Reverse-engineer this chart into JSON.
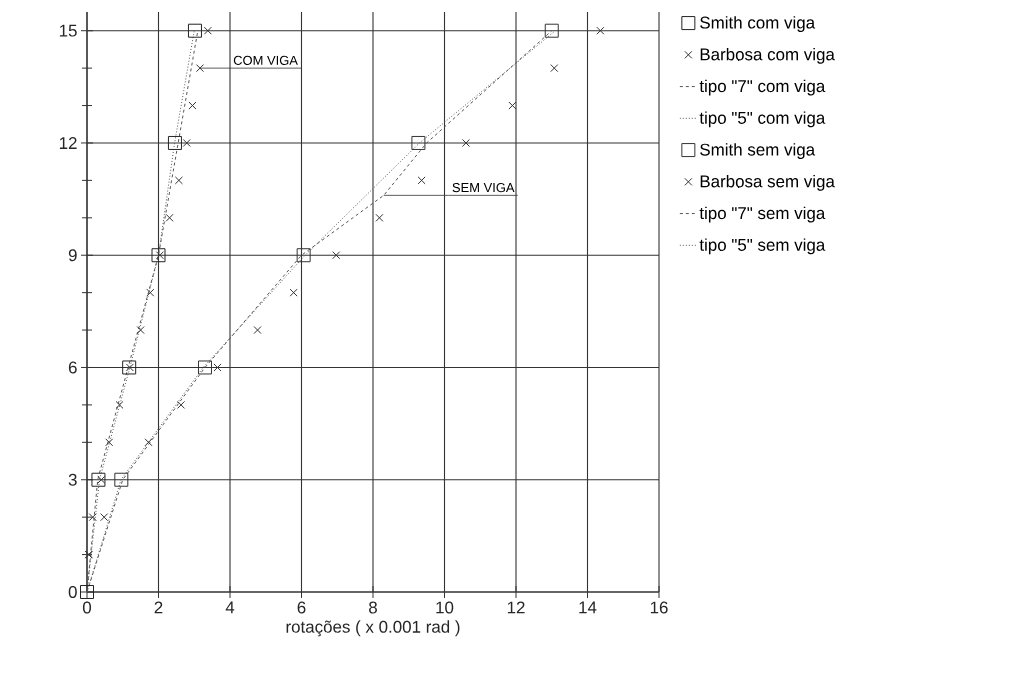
{
  "chart_data": {
    "type": "scatter",
    "xlabel": "rotações ( x 0.001 rad )",
    "xlim": [
      0,
      16
    ],
    "ylim": [
      0,
      15.5
    ],
    "xticks": [
      0,
      2,
      4,
      6,
      8,
      10,
      12,
      14,
      16
    ],
    "yticks": [
      0,
      3,
      6,
      9,
      12,
      15
    ],
    "grid": true,
    "legend": "right",
    "series": [
      {
        "name": "Smith    com viga",
        "marker": "square",
        "color": "#222222",
        "x": [
          0,
          0.32,
          1.18,
          2.0,
          2.46,
          3.02
        ],
        "values": [
          0,
          3,
          6,
          9,
          12,
          15
        ]
      },
      {
        "name": "Barbosa  com viga",
        "marker": "cross",
        "color": "#333333",
        "x": [
          0.05,
          0.16,
          0.4,
          0.62,
          0.91,
          1.2,
          1.5,
          1.77,
          2.04,
          2.31,
          2.57,
          2.79,
          2.95,
          3.16,
          3.38
        ],
        "values": [
          1,
          2,
          3,
          4,
          5,
          6,
          7,
          8,
          9,
          10,
          11,
          12,
          13,
          14,
          15
        ]
      },
      {
        "name": "tipo \"7\" com viga",
        "type": "line",
        "line_style": "dashed",
        "color": "#555555",
        "x": [
          0,
          0.3,
          1.15,
          2.0,
          2.55,
          3.1
        ],
        "values": [
          0,
          3,
          6,
          9,
          12,
          15
        ]
      },
      {
        "name": "tipo \"5\" com viga",
        "type": "line",
        "line_style": "dotted",
        "color": "#555555",
        "x": [
          0,
          0.35,
          1.2,
          2.0,
          2.45,
          3.0
        ],
        "values": [
          0,
          3,
          6,
          9,
          12,
          15
        ]
      },
      {
        "name": "Smith    sem viga",
        "marker": "square",
        "color": "#333333",
        "x": [
          0.96,
          3.3,
          6.06,
          9.27,
          13.0
        ],
        "values": [
          3,
          6,
          9,
          12,
          15
        ]
      },
      {
        "name": "Barbosa  sem viga",
        "marker": "cross",
        "color": "#333333",
        "x": [
          0.05,
          0.48,
          1.72,
          2.63,
          3.65,
          4.77,
          5.78,
          6.97,
          8.18,
          9.36,
          10.6,
          11.9,
          13.07,
          14.36
        ],
        "values": [
          1,
          2,
          4,
          5,
          6,
          7,
          8,
          9,
          10,
          11,
          12,
          13,
          14,
          15
        ]
      },
      {
        "name": "tipo \"7\" sem viga",
        "type": "line",
        "line_style": "dashed",
        "color": "#555555",
        "x": [
          0,
          1.0,
          3.3,
          6.0,
          8.3,
          9.5,
          13.0
        ],
        "values": [
          0,
          3,
          6,
          9,
          10.6,
          12,
          15
        ]
      },
      {
        "name": "tipo \"5\" sem viga",
        "type": "line",
        "line_style": "dotted",
        "color": "#555555",
        "x": [
          0,
          0.95,
          3.25,
          6.1,
          9.3,
          13.1
        ],
        "values": [
          0,
          3,
          6,
          9,
          12,
          15
        ]
      }
    ],
    "annotations": [
      {
        "text": "COM VIGA",
        "x": 3.16,
        "y": 14
      },
      {
        "text": "SEM VIGA",
        "x": 8.3,
        "y": 10.6
      }
    ]
  }
}
